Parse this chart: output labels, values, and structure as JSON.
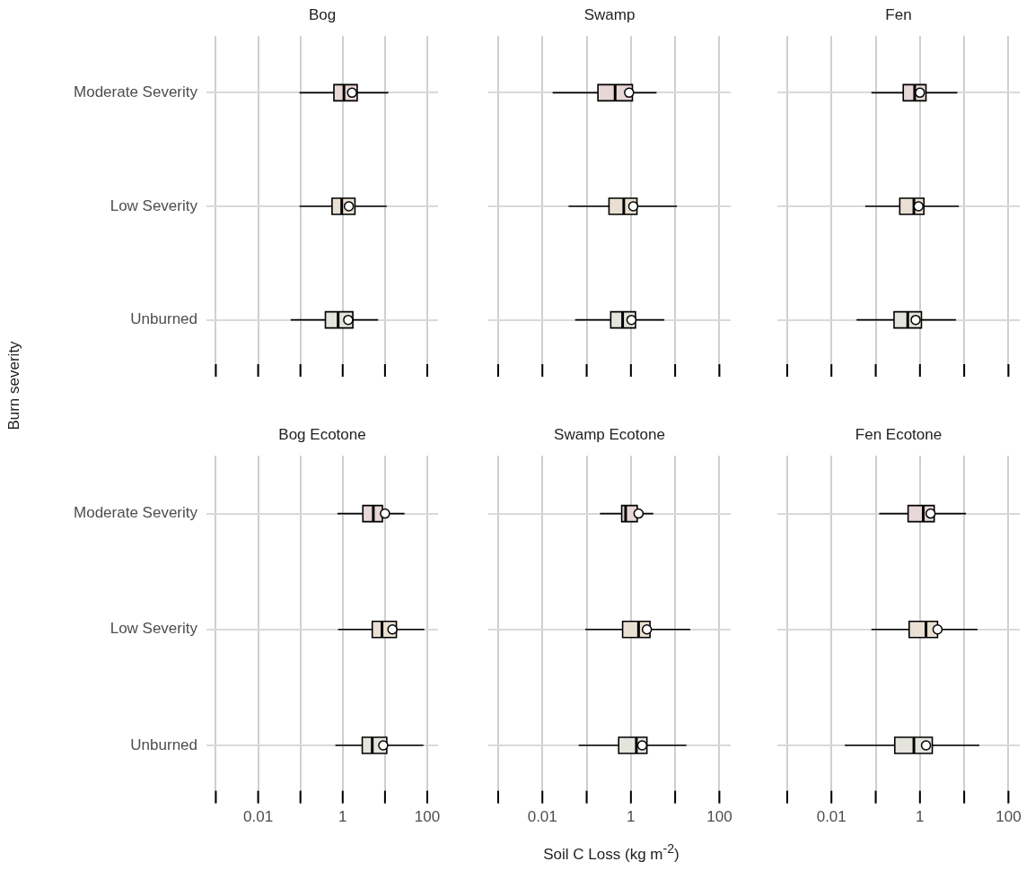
{
  "chart_data": [
    {
      "type": "box",
      "title": "Bog",
      "ylabel": "Burn severity",
      "orientation": "horizontal",
      "log": "x",
      "categories": [
        "Moderate Severity",
        "Low Severity",
        "Unburned"
      ],
      "colors": [
        "#9b4b4e",
        "#a8863a",
        "#88a077"
      ],
      "xlim": [
        0.0006,
        180
      ],
      "xticks": [
        {
          "value": 0.001,
          "label": null
        },
        {
          "value": 0.01,
          "label": null
        },
        {
          "value": 0.1,
          "label": null
        },
        {
          "value": 1,
          "label": null
        },
        {
          "value": 10,
          "label": null
        },
        {
          "value": 100,
          "label": null
        }
      ],
      "grid": true,
      "tick_labels": "y",
      "boxes": [
        {
          "low": 0.095,
          "q1": 0.62,
          "median": 1.07,
          "q3": 2.2,
          "high": 12,
          "mean": 1.66
        },
        {
          "low": 0.095,
          "q1": 0.56,
          "median": 0.95,
          "q3": 1.95,
          "high": 11,
          "mean": 1.4
        },
        {
          "low": 0.059,
          "q1": 0.39,
          "median": 0.78,
          "q3": 1.74,
          "high": 6.9,
          "mean": 1.35
        }
      ]
    },
    {
      "type": "box",
      "title": "Swamp",
      "orientation": "horizontal",
      "log": "x",
      "categories": [
        null,
        null,
        null
      ],
      "colors": [
        "#9b4b4e",
        "#a8863a",
        "#88a077"
      ],
      "xlim": [
        0.0006,
        180
      ],
      "xticks": [
        {
          "value": 0.001,
          "label": null
        },
        {
          "value": 0.01,
          "label": null
        },
        {
          "value": 0.1,
          "label": null
        },
        {
          "value": 1,
          "label": null
        },
        {
          "value": 10,
          "label": null
        },
        {
          "value": 100,
          "label": null
        }
      ],
      "grid": true,
      "tick_labels": false,
      "boxes": [
        {
          "low": 0.017,
          "q1": 0.18,
          "median": 0.44,
          "q3": 1.08,
          "high": 3.8,
          "mean": 0.91
        },
        {
          "low": 0.039,
          "q1": 0.32,
          "median": 0.69,
          "q3": 1.37,
          "high": 11,
          "mean": 1.13
        },
        {
          "low": 0.055,
          "q1": 0.35,
          "median": 0.65,
          "q3": 1.27,
          "high": 5.7,
          "mean": 1.03
        }
      ]
    },
    {
      "type": "box",
      "title": "Fen",
      "orientation": "horizontal",
      "log": "x",
      "categories": [
        null,
        null,
        null
      ],
      "colors": [
        "#9b4b4e",
        "#a8863a",
        "#88a077"
      ],
      "xlim": [
        0.0006,
        180
      ],
      "xticks": [
        {
          "value": 0.001,
          "label": null
        },
        {
          "value": 0.01,
          "label": null
        },
        {
          "value": 0.1,
          "label": null
        },
        {
          "value": 1,
          "label": null
        },
        {
          "value": 10,
          "label": null
        },
        {
          "value": 100,
          "label": null
        }
      ],
      "grid": true,
      "tick_labels": false,
      "boxes": [
        {
          "low": 0.08,
          "q1": 0.42,
          "median": 0.76,
          "q3": 1.37,
          "high": 7,
          "mean": 1.0
        },
        {
          "low": 0.058,
          "q1": 0.35,
          "median": 0.73,
          "q3": 1.23,
          "high": 7.6,
          "mean": 0.93
        },
        {
          "low": 0.037,
          "q1": 0.26,
          "median": 0.53,
          "q3": 1.08,
          "high": 6.5,
          "mean": 0.8
        }
      ]
    },
    {
      "type": "box",
      "title": "Bog Ecotone",
      "orientation": "horizontal",
      "log": "x",
      "categories": [
        "Moderate Severity",
        "Low Severity",
        "Unburned"
      ],
      "colors": [
        "#9b4b4e",
        "#a8863a",
        "#88a077"
      ],
      "xlim": [
        0.0006,
        180
      ],
      "xticks": [
        {
          "value": 0.001,
          "label": null
        },
        {
          "value": 0.01,
          "label": "0.01"
        },
        {
          "value": 0.1,
          "label": null
        },
        {
          "value": 1,
          "label": "1"
        },
        {
          "value": 10,
          "label": null
        },
        {
          "value": 100,
          "label": "100"
        }
      ],
      "grid": true,
      "boxes": [
        {
          "low": 0.75,
          "q1": 3.0,
          "median": 5.3,
          "q3": 8.7,
          "high": 29,
          "mean": 10
        },
        {
          "low": 0.78,
          "q1": 5.0,
          "median": 8.5,
          "q3": 18.6,
          "high": 85,
          "mean": 15
        },
        {
          "low": 0.67,
          "q1": 2.9,
          "median": 5.0,
          "q3": 11,
          "high": 81,
          "mean": 9.1
        }
      ]
    },
    {
      "type": "box",
      "title": "Swamp Ecotone",
      "xlabel": "Soil C Loss (kg m$^{-2}$)",
      "orientation": "horizontal",
      "log": "x",
      "categories": [
        null,
        null,
        null
      ],
      "colors": [
        "#9b4b4e",
        "#a8863a",
        "#88a077"
      ],
      "xlim": [
        0.0006,
        180
      ],
      "xticks": [
        {
          "value": 0.001,
          "label": null
        },
        {
          "value": 0.01,
          "label": "0.01"
        },
        {
          "value": 0.1,
          "label": null
        },
        {
          "value": 1,
          "label": "1"
        },
        {
          "value": 10,
          "label": null
        },
        {
          "value": 100,
          "label": "100"
        }
      ],
      "grid": true,
      "tick_labels": "x",
      "boxes": [
        {
          "low": 0.2,
          "q1": 0.62,
          "median": 0.76,
          "q3": 1.39,
          "high": 3.2,
          "mean": 1.49
        },
        {
          "low": 0.093,
          "q1": 0.65,
          "median": 1.49,
          "q3": 2.7,
          "high": 22,
          "mean": 2.3
        },
        {
          "low": 0.066,
          "q1": 0.53,
          "median": 1.33,
          "q3": 2.3,
          "high": 18,
          "mean": 1.8
        }
      ]
    },
    {
      "type": "box",
      "title": "Fen Ecotone",
      "orientation": "horizontal",
      "log": "x",
      "categories": [
        null,
        null,
        null
      ],
      "colors": [
        "#9b4b4e",
        "#a8863a",
        "#88a077"
      ],
      "xlim": [
        0.0006,
        180
      ],
      "xticks": [
        {
          "value": 0.001,
          "label": null
        },
        {
          "value": 0.01,
          "label": "0.01"
        },
        {
          "value": 0.1,
          "label": null
        },
        {
          "value": 1,
          "label": "1"
        },
        {
          "value": 10,
          "label": null
        },
        {
          "value": 100,
          "label": "100"
        }
      ],
      "grid": true,
      "tick_labels": "x",
      "boxes": [
        {
          "low": 0.12,
          "q1": 0.54,
          "median": 1.19,
          "q3": 2.1,
          "high": 11,
          "mean": 1.74
        },
        {
          "low": 0.08,
          "q1": 0.57,
          "median": 1.37,
          "q3": 2.5,
          "high": 20,
          "mean": 2.5
        },
        {
          "low": 0.02,
          "q1": 0.27,
          "median": 0.73,
          "q3": 1.9,
          "high": 22,
          "mean": 1.37
        }
      ]
    }
  ]
}
